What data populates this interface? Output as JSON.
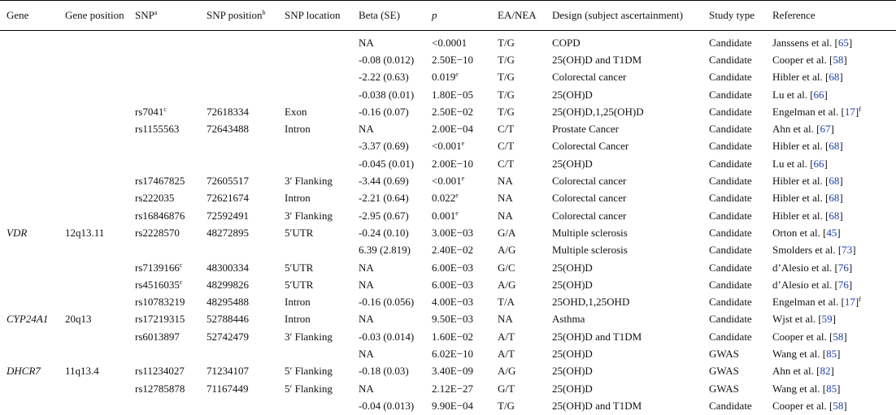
{
  "headers": {
    "gene": "Gene",
    "gene_position": "Gene position",
    "snp": "SNP",
    "snp_sup": "a",
    "snp_position": "SNP position",
    "snp_position_sup": "b",
    "snp_location": "SNP location",
    "beta": "Beta (SE)",
    "p": "p",
    "ea_nea": "EA/NEA",
    "design": "Design (subject ascertainment)",
    "study_type": "Study type",
    "reference": "Reference"
  },
  "rows": [
    {
      "gene": "",
      "gene_position": "",
      "snp": "",
      "snp_sup": "",
      "snp_position": "",
      "snp_location": "",
      "beta": "NA",
      "p": "<0.0001",
      "p_sup": "",
      "ea_nea": "T/G",
      "design": "COPD",
      "study_type": "Candidate",
      "ref_author": "Janssens et al. [",
      "ref_num": "65",
      "ref_close": "]",
      "ref_sup": ""
    },
    {
      "gene": "",
      "gene_position": "",
      "snp": "",
      "snp_sup": "",
      "snp_position": "",
      "snp_location": "",
      "beta": "-0.08 (0.012)",
      "p": "2.50E−10",
      "p_sup": "",
      "ea_nea": "T/G",
      "design": "25(OH)D and T1DM",
      "study_type": "Candidate",
      "ref_author": "Cooper et al. [",
      "ref_num": "58",
      "ref_close": "]",
      "ref_sup": ""
    },
    {
      "gene": "",
      "gene_position": "",
      "snp": "",
      "snp_sup": "",
      "snp_position": "",
      "snp_location": "",
      "beta": "-2.22 (0.63)",
      "p": "0.019",
      "p_sup": "e",
      "ea_nea": "T/G",
      "design": "Colorectal cancer",
      "study_type": "Candidate",
      "ref_author": "Hibler et al. [",
      "ref_num": "68",
      "ref_close": "]",
      "ref_sup": ""
    },
    {
      "gene": "",
      "gene_position": "",
      "snp": "",
      "snp_sup": "",
      "snp_position": "",
      "snp_location": "",
      "beta": "-0.038 (0.01)",
      "p": "1.80E−05",
      "p_sup": "",
      "ea_nea": "T/G",
      "design": "25(OH)D",
      "study_type": "Candidate",
      "ref_author": "Lu et al. [",
      "ref_num": "66",
      "ref_close": "]",
      "ref_sup": ""
    },
    {
      "gene": "",
      "gene_position": "",
      "snp": "rs7041",
      "snp_sup": "c",
      "snp_position": "72618334",
      "snp_location": "Exon",
      "beta": "-0.16 (0.07)",
      "p": "2.50E−02",
      "p_sup": "",
      "ea_nea": "T/G",
      "design": "25(OH)D,1,25(OH)D",
      "study_type": "Candidate",
      "ref_author": "Engelman et al. [",
      "ref_num": "17",
      "ref_close": "]",
      "ref_sup": "f"
    },
    {
      "gene": "",
      "gene_position": "",
      "snp": "rs1155563",
      "snp_sup": "",
      "snp_position": "72643488",
      "snp_location": "Intron",
      "beta": "NA",
      "p": "2.00E−04",
      "p_sup": "",
      "ea_nea": "C/T",
      "design": "Prostate Cancer",
      "study_type": "Candidate",
      "ref_author": "Ahn et al. [",
      "ref_num": "67",
      "ref_close": "]",
      "ref_sup": ""
    },
    {
      "gene": "",
      "gene_position": "",
      "snp": "",
      "snp_sup": "",
      "snp_position": "",
      "snp_location": "",
      "beta": "-3.37 (0.69)",
      "p": "<0.001",
      "p_sup": "e",
      "ea_nea": "C/T",
      "design": "Colorectal Cancer",
      "study_type": "Candidate",
      "ref_author": "Hibler et al. [",
      "ref_num": "68",
      "ref_close": "]",
      "ref_sup": ""
    },
    {
      "gene": "",
      "gene_position": "",
      "snp": "",
      "snp_sup": "",
      "snp_position": "",
      "snp_location": "",
      "beta": "-0.045 (0.01)",
      "p": "2.00E−10",
      "p_sup": "",
      "ea_nea": "C/T",
      "design": "25(OH)D",
      "study_type": "Candidate",
      "ref_author": "Lu et al. [",
      "ref_num": "66",
      "ref_close": "]",
      "ref_sup": ""
    },
    {
      "gene": "",
      "gene_position": "",
      "snp": "rs17467825",
      "snp_sup": "",
      "snp_position": "72605517",
      "snp_location": "3′ Flanking",
      "beta": "-3.44 (0.69)",
      "p": "<0.001",
      "p_sup": "e",
      "ea_nea": "NA",
      "design": "Colorectal cancer",
      "study_type": "Candidate",
      "ref_author": "Hibler et al. [",
      "ref_num": "68",
      "ref_close": "]",
      "ref_sup": ""
    },
    {
      "gene": "",
      "gene_position": "",
      "snp": "rs222035",
      "snp_sup": "",
      "snp_position": "72621674",
      "snp_location": "Intron",
      "beta": "-2.21 (0.64)",
      "p": "0.022",
      "p_sup": "e",
      "ea_nea": "NA",
      "design": "Colorectal cancer",
      "study_type": "Candidate",
      "ref_author": "Hibler et al. [",
      "ref_num": "68",
      "ref_close": "]",
      "ref_sup": ""
    },
    {
      "gene": "",
      "gene_position": "",
      "snp": "rs16846876",
      "snp_sup": "",
      "snp_position": "72592491",
      "snp_location": "3′ Flanking",
      "beta": "-2.95 (0.67)",
      "p": "0.001",
      "p_sup": "e",
      "ea_nea": "NA",
      "design": "Colorectal cancer",
      "study_type": "Candidate",
      "ref_author": "Hibler et al. [",
      "ref_num": "68",
      "ref_close": "]",
      "ref_sup": ""
    },
    {
      "gene": "VDR",
      "gene_position": "12q13.11",
      "snp": "rs2228570",
      "snp_sup": "",
      "snp_position": "48272895",
      "snp_location": "5′UTR",
      "beta": "-0.24 (0.10)",
      "p": "3.00E−03",
      "p_sup": "",
      "ea_nea": "G/A",
      "design": "Multiple sclerosis",
      "study_type": "Candidate",
      "ref_author": "Orton et al. [",
      "ref_num": "45",
      "ref_close": "]",
      "ref_sup": ""
    },
    {
      "gene": "",
      "gene_position": "",
      "snp": "",
      "snp_sup": "",
      "snp_position": "",
      "snp_location": "",
      "beta": "6.39 (2.819)",
      "p": "2.40E−02",
      "p_sup": "",
      "ea_nea": "A/G",
      "design": "Multiple sclerosis",
      "study_type": "Candidate",
      "ref_author": "Smolders et al. [",
      "ref_num": "73",
      "ref_close": "]",
      "ref_sup": ""
    },
    {
      "gene": "",
      "gene_position": "",
      "snp": "rs7139166",
      "snp_sup": "c",
      "snp_position": "48300334",
      "snp_location": "5′UTR",
      "beta": "NA",
      "p": "6.00E−03",
      "p_sup": "",
      "ea_nea": "G/C",
      "design": "25(OH)D",
      "study_type": "Candidate",
      "ref_author": "d’Alesio et al. [",
      "ref_num": "76",
      "ref_close": "]",
      "ref_sup": ""
    },
    {
      "gene": "",
      "gene_position": "",
      "snp": "rs4516035",
      "snp_sup": "c",
      "snp_position": "48299826",
      "snp_location": "5′UTR",
      "beta": "NA",
      "p": "6.00E−03",
      "p_sup": "",
      "ea_nea": "A/G",
      "design": "25(OH)D",
      "study_type": "Candidate",
      "ref_author": "d’Alesio et al. [",
      "ref_num": "76",
      "ref_close": "]",
      "ref_sup": ""
    },
    {
      "gene": "",
      "gene_position": "",
      "snp": "rs10783219",
      "snp_sup": "",
      "snp_position": "48295488",
      "snp_location": "Intron",
      "beta": "-0.16 (0.056)",
      "p": "4.00E−03",
      "p_sup": "",
      "ea_nea": "T/A",
      "design": "25OHD,1,25OHD",
      "study_type": "Candidate",
      "ref_author": "Engelman et al. [",
      "ref_num": "17",
      "ref_close": "]",
      "ref_sup": "f"
    },
    {
      "gene": "CYP24A1",
      "gene_position": "20q13",
      "snp": "rs17219315",
      "snp_sup": "",
      "snp_position": "52788446",
      "snp_location": "Intron",
      "beta": "NA",
      "p": "9.50E−03",
      "p_sup": "",
      "ea_nea": "NA",
      "design": "Asthma",
      "study_type": "Candidate",
      "ref_author": "Wjst et al. [",
      "ref_num": "59",
      "ref_close": "]",
      "ref_sup": ""
    },
    {
      "gene": "",
      "gene_position": "",
      "snp": "rs6013897",
      "snp_sup": "",
      "snp_position": "52742479",
      "snp_location": "3′ Flanking",
      "beta": "-0.03 (0.014)",
      "p": "1.60E−02",
      "p_sup": "",
      "ea_nea": "A/T",
      "design": "25(OH)D and T1DM",
      "study_type": "Candidate",
      "ref_author": "Cooper et al. [",
      "ref_num": "58",
      "ref_close": "]",
      "ref_sup": ""
    },
    {
      "gene": "",
      "gene_position": "",
      "snp": "",
      "snp_sup": "",
      "snp_position": "",
      "snp_location": "",
      "beta": "NA",
      "p": "6.02E−10",
      "p_sup": "",
      "ea_nea": "A/T",
      "design": "25(OH)D",
      "study_type": "GWAS",
      "ref_author": "Wang et al. [",
      "ref_num": "85",
      "ref_close": "]",
      "ref_sup": ""
    },
    {
      "gene": "DHCR7",
      "gene_position": "11q13.4",
      "snp": "rs11234027",
      "snp_sup": "",
      "snp_position": "71234107",
      "snp_location": "5′ Flanking",
      "beta": "-0.18 (0.03)",
      "p": "3.40E−09",
      "p_sup": "",
      "ea_nea": "A/G",
      "design": "25(OH)D",
      "study_type": "GWAS",
      "ref_author": "Ahn et al. [",
      "ref_num": "82",
      "ref_close": "]",
      "ref_sup": ""
    },
    {
      "gene": "",
      "gene_position": "",
      "snp": "rs12785878",
      "snp_sup": "",
      "snp_position": "71167449",
      "snp_location": "5′ Flanking",
      "beta": "NA",
      "p": "2.12E−27",
      "p_sup": "",
      "ea_nea": "G/T",
      "design": "25(OH)D",
      "study_type": "GWAS",
      "ref_author": "Wang et al. [",
      "ref_num": "85",
      "ref_close": "]",
      "ref_sup": ""
    },
    {
      "gene": "",
      "gene_position": "",
      "snp": "",
      "snp_sup": "",
      "snp_position": "",
      "snp_location": "",
      "beta": "-0.04 (0.013)",
      "p": "9.90E−04",
      "p_sup": "",
      "ea_nea": "T/G",
      "design": "25(OH)D and T1DM",
      "study_type": "Candidate",
      "ref_author": "Cooper et al. [",
      "ref_num": "58",
      "ref_close": "]",
      "ref_sup": ""
    }
  ]
}
